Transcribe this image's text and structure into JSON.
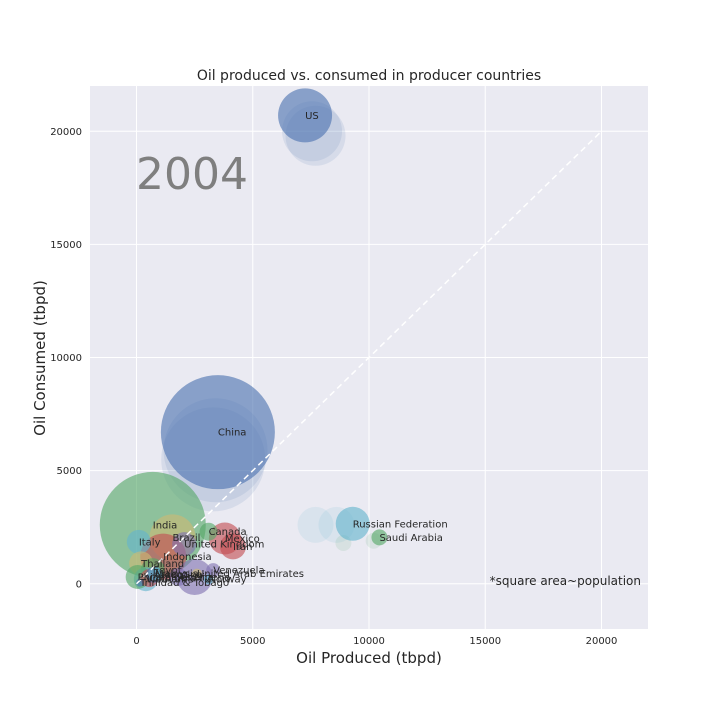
{
  "chart_data": {
    "type": "scatter",
    "title": "Oil produced vs. consumed in producer countries",
    "xlabel": "Oil Produced (tbpd)",
    "ylabel": "Oil Consumed (tbpd)",
    "xlim": [
      -2000,
      22000
    ],
    "ylim": [
      -2000,
      22000
    ],
    "xticks": [
      0,
      5000,
      10000,
      15000,
      20000
    ],
    "yticks": [
      0,
      5000,
      10000,
      15000,
      20000
    ],
    "grid": true,
    "year_label": "2004",
    "note": "*square area~population",
    "reference_line": {
      "x": [
        0,
        20000
      ],
      "y": [
        0,
        20000
      ],
      "style": "dashed"
    },
    "colors": {
      "background": "#eaeaf2",
      "grid": "#ffffff",
      "blue": "#4c72b0",
      "green": "#55a868",
      "red": "#c44e52",
      "purple": "#8172b2",
      "gold": "#ccb974",
      "cyan": "#64b5cd"
    },
    "trail_points": [
      {
        "country": "US",
        "x": 7550,
        "y": 20000,
        "size": 30,
        "color": "blue"
      },
      {
        "country": "US",
        "x": 7700,
        "y": 19800,
        "size": 30,
        "color": "blue"
      },
      {
        "country": "China",
        "x": 3400,
        "y": 5900,
        "size": 52,
        "color": "blue"
      },
      {
        "country": "China",
        "x": 3300,
        "y": 5500,
        "size": 52,
        "color": "blue"
      },
      {
        "country": "Russian Federation",
        "x": 8600,
        "y": 2600,
        "size": 18,
        "color": "cyan"
      },
      {
        "country": "Russian Federation",
        "x": 7700,
        "y": 2600,
        "size": 18,
        "color": "cyan"
      },
      {
        "country": "Saudi Arabia",
        "x": 10200,
        "y": 1900,
        "size": 8,
        "color": "green"
      },
      {
        "country": "Saudi Arabia",
        "x": 8900,
        "y": 1800,
        "size": 8,
        "color": "green"
      }
    ],
    "points": [
      {
        "country": "US",
        "x": 7250,
        "y": 20700,
        "size": 27,
        "color": "blue",
        "label": "US"
      },
      {
        "country": "China",
        "x": 3500,
        "y": 6700,
        "size": 57,
        "color": "blue",
        "label": "China"
      },
      {
        "country": "India",
        "x": 700,
        "y": 2600,
        "size": 53,
        "color": "green",
        "label": "India"
      },
      {
        "country": "Russian Federation",
        "x": 9300,
        "y": 2650,
        "size": 17,
        "color": "cyan",
        "label": "Russian Federation"
      },
      {
        "country": "Saudi Arabia",
        "x": 10450,
        "y": 2050,
        "size": 8,
        "color": "green",
        "label": "Saudi Arabia"
      },
      {
        "country": "Brazil",
        "x": 1550,
        "y": 2050,
        "size": 23,
        "color": "gold",
        "label": "Brazil"
      },
      {
        "country": "Canada",
        "x": 3100,
        "y": 2300,
        "size": 9,
        "color": "green",
        "label": "Canada"
      },
      {
        "country": "Mexico",
        "x": 3800,
        "y": 2000,
        "size": 16,
        "color": "red",
        "label": "Mexico"
      },
      {
        "country": "Iran",
        "x": 4150,
        "y": 1650,
        "size": 13,
        "color": "red",
        "label": "Iran"
      },
      {
        "country": "United Kingdom",
        "x": 2050,
        "y": 1750,
        "size": 12,
        "color": "purple",
        "label": "United Kingdom"
      },
      {
        "country": "Italy",
        "x": 100,
        "y": 1850,
        "size": 12,
        "color": "cyan",
        "label": "Italy"
      },
      {
        "country": "Indonesia",
        "x": 1150,
        "y": 1200,
        "size": 23,
        "color": "red",
        "label": "Indonesia"
      },
      {
        "country": "Thailand",
        "x": 200,
        "y": 900,
        "size": 12,
        "color": "gold",
        "label": "Thailand"
      },
      {
        "country": "Nigeria",
        "x": 2500,
        "y": 300,
        "size": 18,
        "color": "purple",
        "label": "Nigeria"
      },
      {
        "country": "Venezuela",
        "x": 3300,
        "y": 600,
        "size": 7,
        "color": "purple",
        "label": "Venezuela"
      },
      {
        "country": "United Arab Emirates",
        "x": 2600,
        "y": 450,
        "size": 5,
        "color": "gold",
        "label": "United Arab Emirates"
      },
      {
        "country": "Norway",
        "x": 3100,
        "y": 200,
        "size": 5,
        "color": "cyan",
        "label": "Norway"
      },
      {
        "country": "Algeria",
        "x": 1800,
        "y": 300,
        "size": 9,
        "color": "purple",
        "label": "Algeria"
      },
      {
        "country": "Malaysia",
        "x": 800,
        "y": 450,
        "size": 7,
        "color": "cyan",
        "label": "Malaysia"
      },
      {
        "country": "Argentina",
        "x": 750,
        "y": 400,
        "size": 8,
        "color": "blue",
        "label": "Argentina"
      },
      {
        "country": "Egypt",
        "x": 700,
        "y": 600,
        "size": 12,
        "color": "green",
        "label": "Egypt"
      },
      {
        "country": "Colombia",
        "x": 550,
        "y": 250,
        "size": 9,
        "color": "red",
        "label": "Colombia"
      },
      {
        "country": "Vietnam",
        "x": 400,
        "y": 200,
        "size": 12,
        "color": "cyan",
        "label": "Vietnam"
      },
      {
        "country": "Trinidad & Tobago",
        "x": 150,
        "y": 50,
        "size": 4,
        "color": "blue",
        "label": "Trinidad & Tobago"
      },
      {
        "country": "Philippines",
        "x": 50,
        "y": 300,
        "size": 12,
        "color": "green",
        "label": "Philippines"
      }
    ]
  }
}
